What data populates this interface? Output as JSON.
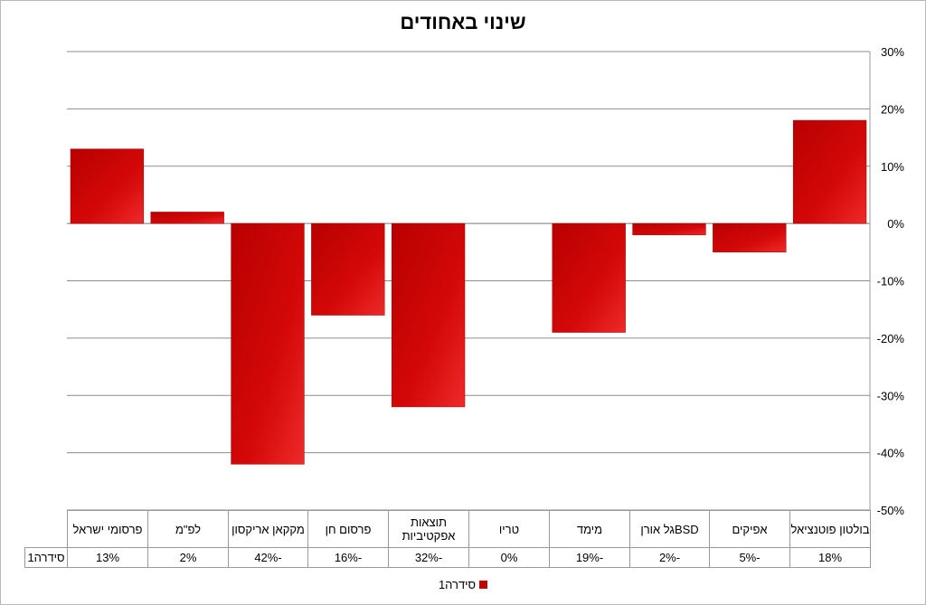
{
  "chart_data": {
    "type": "bar",
    "title": "שינוי באחודים",
    "categories": [
      "פרסומי ישראל",
      "לפ\"מ",
      "מקקאן אריקסון",
      "פרסום חן",
      "תוצאות אפקטיביות",
      "טריו",
      "מימד",
      "BSDגל אורן",
      "אפיקים",
      "בולטון פוטנציאל"
    ],
    "series": [
      {
        "name": "סידרה1",
        "values": [
          13,
          2,
          -42,
          -16,
          -32,
          0,
          -19,
          -2,
          -5,
          18
        ],
        "labels": [
          "13%",
          "2%",
          "-42%",
          "-16%",
          "-32%",
          "0%",
          "-19%",
          "-2%",
          "-5%",
          "18%"
        ]
      }
    ],
    "ylim": [
      -50,
      30
    ],
    "yticks": [
      30,
      20,
      10,
      0,
      -10,
      -20,
      -30,
      -40,
      -50
    ],
    "ytick_labels": [
      "30%",
      "20%",
      "10%",
      "0%",
      "-10%",
      "-20%",
      "-30%",
      "-40%",
      "-50%"
    ],
    "yaxis_side": "right",
    "grid": true,
    "data_table": true,
    "legend": "bottom",
    "colors": {
      "bar": "#c00000",
      "bar_light": "#e8242a",
      "grid": "#8c8c8c"
    }
  }
}
